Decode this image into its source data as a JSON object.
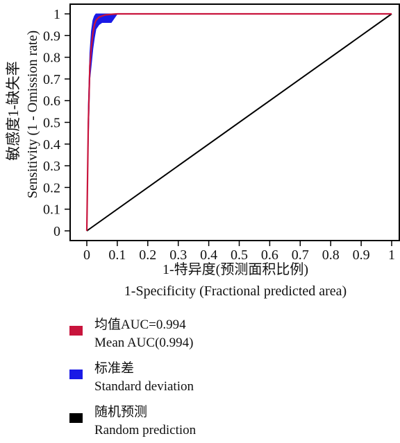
{
  "chart_data": {
    "type": "line",
    "title": "",
    "xlabel_cn": "1-特异度(预测面积比例)",
    "xlabel_en": "1-Specificity (Fractional predicted area)",
    "ylabel_cn": "敏感度1-缺失率",
    "ylabel_en": "Sensitivity (1 - Omission rate)",
    "xlim": [
      0,
      1
    ],
    "ylim": [
      0,
      1
    ],
    "xticks": [
      "0",
      "0.1",
      "0.2",
      "0.3",
      "0.4",
      "0.5",
      "0.6",
      "0.7",
      "0.8",
      "0.9",
      "1"
    ],
    "yticks": [
      "0",
      "0.1",
      "0.2",
      "0.3",
      "0.4",
      "0.5",
      "0.6",
      "0.7",
      "0.8",
      "0.9",
      "1"
    ],
    "grid": false,
    "legend_position": "bottom",
    "series": [
      {
        "name": "Mean AUC(0.994)",
        "color": "#c8143c",
        "x": [
          0,
          0.005,
          0.01,
          0.015,
          0.02,
          0.025,
          0.03,
          0.04,
          0.05,
          0.06,
          0.08,
          0.1,
          0.2,
          0.5,
          1.0
        ],
        "y": [
          0,
          0.5,
          0.76,
          0.85,
          0.91,
          0.95,
          0.97,
          0.985,
          0.99,
          0.995,
          0.998,
          1.0,
          1.0,
          1.0,
          1.0
        ]
      },
      {
        "name": "Random prediction",
        "color": "#000000",
        "x": [
          0,
          1
        ],
        "y": [
          0,
          1
        ]
      }
    ],
    "band": {
      "name": "Standard deviation",
      "color": "#1a1ae6",
      "x": [
        0,
        0.005,
        0.01,
        0.015,
        0.02,
        0.025,
        0.03,
        0.04,
        0.05,
        0.06,
        0.08,
        0.1
      ],
      "upper": [
        0,
        0.58,
        0.82,
        0.92,
        0.97,
        0.99,
        1.0,
        1.0,
        1.0,
        1.0,
        1.0,
        1.0
      ],
      "lower": [
        0,
        0.42,
        0.7,
        0.77,
        0.84,
        0.89,
        0.93,
        0.95,
        0.96,
        0.96,
        0.96,
        1.0
      ]
    }
  },
  "legend": [
    {
      "cn": "均值AUC=0.994",
      "en": "Mean AUC(0.994)",
      "color": "#c8143c",
      "icon": "red-square-swatch"
    },
    {
      "cn": "标准差",
      "en": "Standard deviation",
      "color": "#1a1ae6",
      "icon": "blue-square-swatch"
    },
    {
      "cn": "随机预测",
      "en": "Random prediction",
      "color": "#000000",
      "icon": "black-square-swatch"
    }
  ]
}
